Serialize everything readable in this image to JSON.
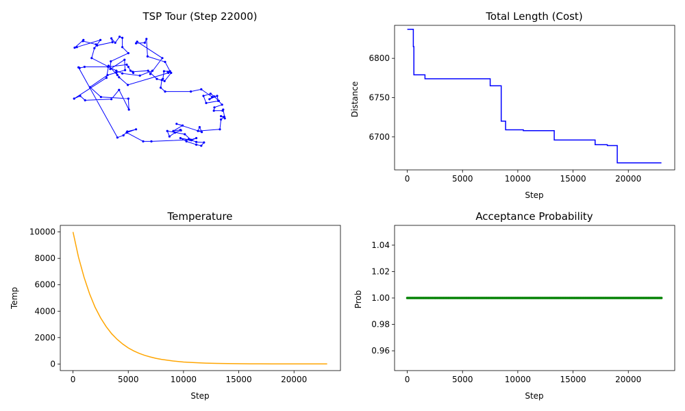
{
  "chart_data": [
    {
      "type": "line",
      "title": "TSP Tour (Step 22000)",
      "axes_visible": false,
      "series": [
        {
          "color": "#0000ff",
          "marker": "point",
          "closed": true,
          "x": [
            12,
            14,
            23,
            66,
            100,
            103,
            107,
            112,
            111,
            139,
            155,
            169,
            181,
            175,
            176,
            102,
            86,
            81,
            83,
            67,
            63,
            4,
            15,
            24,
            72,
            86,
            104,
            103,
            53,
            33,
            65,
            97,
            96,
            70,
            71,
            103,
            92,
            92,
            87,
            79,
            72,
            74,
            46,
            44,
            20,
            21,
            5,
            9,
            52,
            41,
            36,
            81,
            92,
            124,
            147,
            143,
            165,
            119,
            117,
            133,
            136,
            138,
            170,
            179,
            168,
            166,
            164,
            162,
            170,
            217,
            236,
            256,
            251,
            265,
            267,
            268,
            245,
            240,
            253,
            260,
            274,
            260,
            259,
            275,
            276,
            279,
            272,
            278,
            272,
            270,
            230,
            233,
            237,
            191,
            202,
            185,
            198,
            199,
            188,
            178,
            174,
            206,
            217,
            227,
            218,
            198,
            209,
            227,
            236,
            241,
            227,
            213,
            215,
            145,
            130,
            100,
            117,
            101,
            94,
            83
          ],
          "y": [
            177,
            176,
            178,
            178,
            182,
            178,
            171,
            167,
            169,
            171,
            156,
            152,
            167,
            169,
            167,
            145,
            159,
            168,
            163,
            180,
            158,
            120,
            125,
            117,
            119,
            136,
            100,
            120,
            123,
            141,
            163,
            172,
            191,
            174,
            188,
            203,
            214,
            231,
            233,
            222,
            230,
            223,
            217,
            219,
            225,
            227,
            213,
            214,
            227,
            212,
            194,
            171,
            166,
            162,
            171,
            165,
            194,
            224,
            221,
            222,
            229,
            197,
            187,
            170,
            170,
            156,
            154,
            140,
            133,
            133,
            137,
            123,
            119,
            125,
            116,
            116,
            112,
            125,
            129,
            124,
            109,
            104,
            98,
            98,
            100,
            84,
            88,
            87,
            82,
            64,
            61,
            68,
            59,
            74,
            71,
            61,
            63,
            62,
            58,
            51,
            61,
            55,
            45,
            48,
            44,
            48,
            42,
            36,
            34,
            40,
            41,
            46,
            45,
            42,
            42,
            58,
            64,
            60,
            53,
            49
          ]
        }
      ]
    },
    {
      "type": "line",
      "title": "Total Length (Cost)",
      "xlabel": "Step",
      "ylabel": "Distance",
      "xlim": [
        -1150,
        24200
      ],
      "ylim": [
        6658,
        6842
      ],
      "xticks": [
        0,
        5000,
        10000,
        15000,
        20000
      ],
      "yticks": [
        6700,
        6750,
        6800
      ],
      "series": [
        {
          "color": "#0000ff",
          "step": true,
          "x": [
            0,
            500,
            550,
            600,
            700,
            1600,
            7500,
            8400,
            8500,
            8900,
            10500,
            13300,
            17000,
            18100,
            19000,
            23000
          ],
          "y": [
            6837,
            6837,
            6815,
            6779,
            6779,
            6774,
            6765,
            6765,
            6720,
            6709,
            6708,
            6696,
            6690,
            6689,
            6667,
            6667
          ]
        }
      ]
    },
    {
      "type": "line",
      "title": "Temperature",
      "xlabel": "Step",
      "ylabel": "Temp",
      "xlim": [
        -1150,
        24200
      ],
      "ylim": [
        -500,
        10500
      ],
      "xticks": [
        0,
        5000,
        10000,
        15000,
        20000
      ],
      "yticks": [
        0,
        2000,
        4000,
        6000,
        8000,
        10000
      ],
      "series": [
        {
          "color": "#ffa500",
          "x": [
            0,
            500,
            1000,
            1500,
            2000,
            2500,
            3000,
            3500,
            4000,
            4500,
            5000,
            5500,
            6000,
            6500,
            7000,
            7500,
            8000,
            9000,
            10000,
            11000,
            12000,
            13000,
            14000,
            16000,
            18000,
            20000,
            23000
          ],
          "y": [
            10000,
            8090,
            6570,
            5310,
            4300,
            3490,
            2830,
            2290,
            1860,
            1510,
            1220,
            990,
            800,
            650,
            530,
            430,
            350,
            230,
            150,
            100,
            66,
            44,
            29,
            13,
            6,
            3,
            1
          ]
        }
      ]
    },
    {
      "type": "scatter",
      "title": "Acceptance Probability",
      "xlabel": "Step",
      "ylabel": "Prob",
      "xlim": [
        -1150,
        24200
      ],
      "ylim": [
        0.945,
        1.055
      ],
      "xticks": [
        0,
        5000,
        10000,
        15000,
        20000
      ],
      "yticks": [
        0.96,
        0.98,
        1.0,
        1.02,
        1.04
      ],
      "ytick_labels": [
        "0.96",
        "0.98",
        "1.00",
        "1.02",
        "1.04"
      ],
      "series": [
        {
          "color": "#008000",
          "x_range": [
            0,
            23000
          ],
          "y": 1.0
        }
      ]
    }
  ]
}
